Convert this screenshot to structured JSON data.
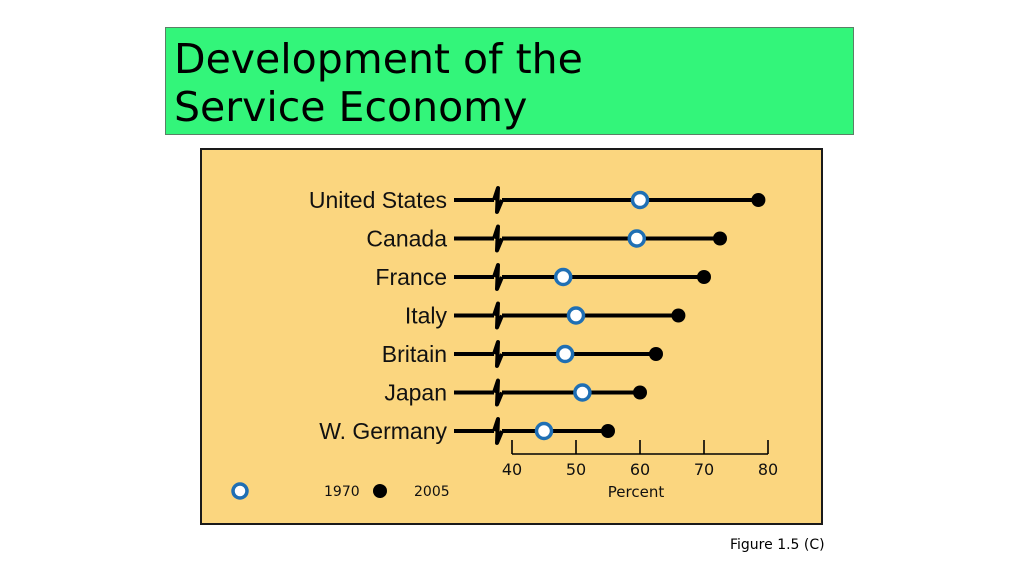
{
  "slide": {
    "title_line1": "Development of the",
    "title_line2": "Service Economy",
    "caption": "Figure 1.5 (C)"
  },
  "colors": {
    "title_bg": "#33f57a",
    "panel_bg": "#fbd67f",
    "marker_1970": "#1f6fb4",
    "marker_2005": "#000000"
  },
  "chart_data": {
    "type": "dumbbell",
    "categories": [
      "United States",
      "Canada",
      "France",
      "Italy",
      "Britain",
      "Japan",
      "W. Germany"
    ],
    "series": [
      {
        "name": "1970",
        "marker": "open-circle",
        "values": [
          60,
          59.5,
          48,
          50,
          48.3,
          51,
          45
        ]
      },
      {
        "name": "2005",
        "marker": "filled-circle",
        "values": [
          78.5,
          72.5,
          70,
          66,
          62.5,
          60,
          55
        ]
      }
    ],
    "xticks": [
      40,
      50,
      60,
      70,
      80
    ],
    "xlabel": "Percent",
    "xlim": [
      40,
      80
    ],
    "axis_break": true,
    "legend_position": "bottom-left"
  }
}
